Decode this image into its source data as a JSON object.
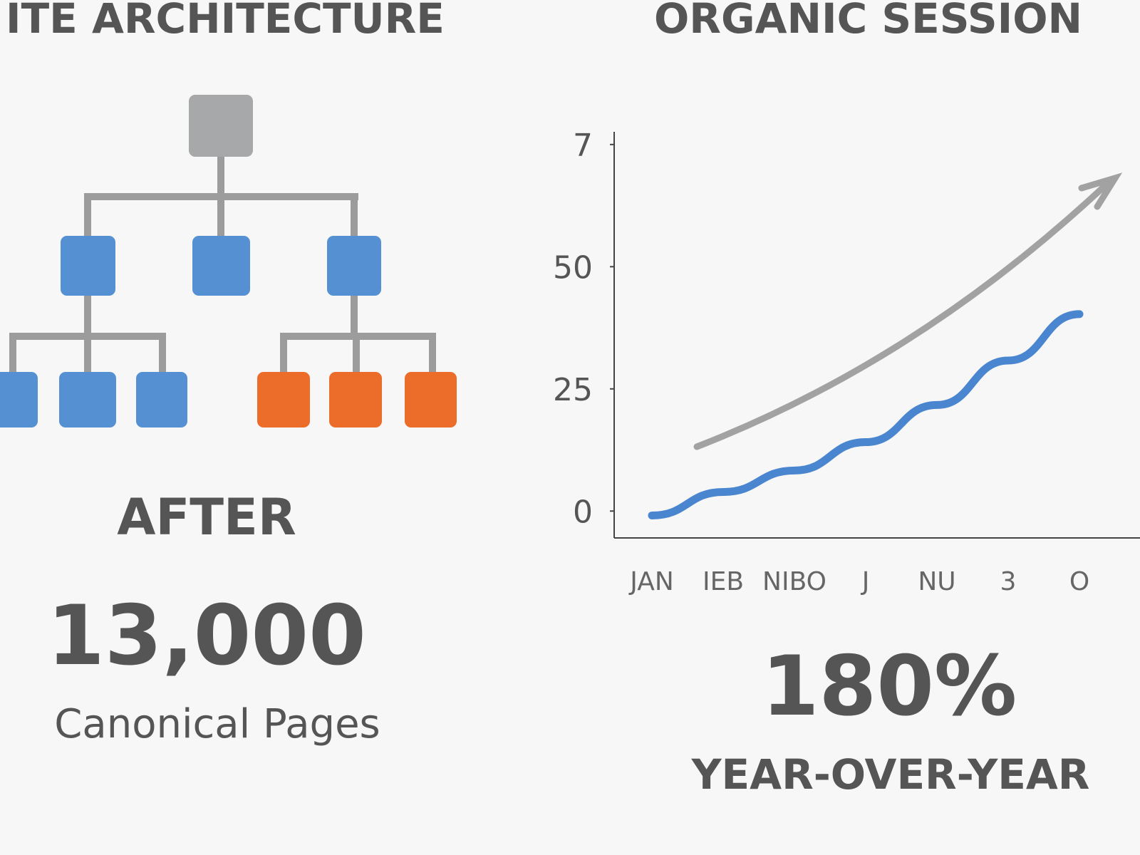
{
  "left_panel": {
    "title": "ITE ARCHITECTURE",
    "label": "AFTER",
    "stat": "13,000",
    "stat_caption": "Canonical Pages"
  },
  "chart_data": {
    "type": "line",
    "title": "ORGANIC SESSION",
    "categories": [
      "JAN",
      "IEB",
      "NIBO",
      "J",
      "NU",
      "3",
      "O"
    ],
    "values": [
      -0.9,
      3.9,
      8.3,
      14.1,
      21.7,
      30.8,
      40.3
    ],
    "color": "#4a86d0",
    "ylim": [
      -5.5,
      77.6
    ],
    "yticks": [
      {
        "value": 75,
        "label": "7"
      },
      50,
      25,
      0
    ],
    "stat": "180%",
    "stat_caption": "YEAR-OVER-YEAR"
  }
}
